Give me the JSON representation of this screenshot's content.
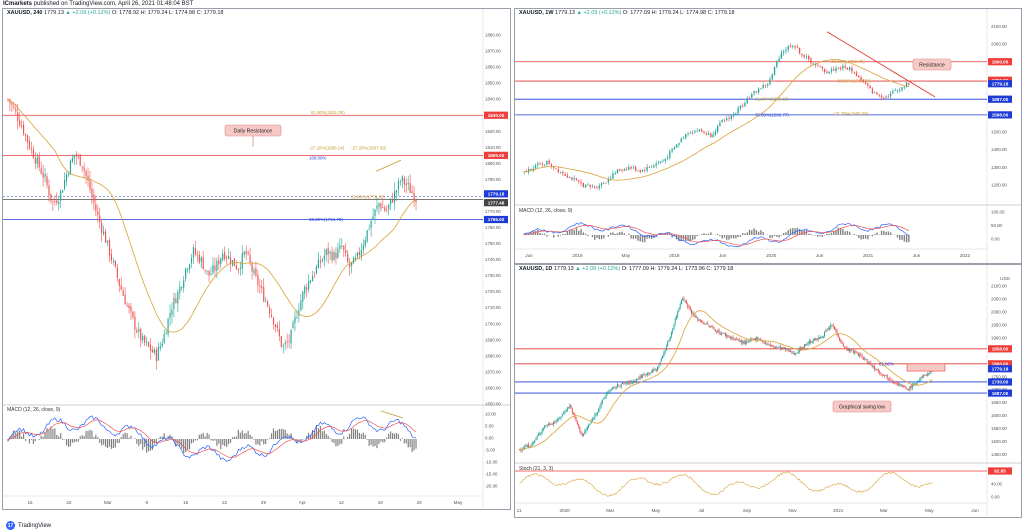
{
  "header": {
    "publisher": "ICmarkets",
    "meta": "published on TradingView.com, April 26, 2021 01:48:04 BST"
  },
  "footer": {
    "brand": "TradingView",
    "logo_text": "17"
  },
  "colors": {
    "up": "#26a69a",
    "down": "#ef5350",
    "red_line": "#e53935",
    "blue_line": "#1e3bd6",
    "ma": "#d8a336",
    "macd": "#2962ff",
    "signal": "#ef5350",
    "hist": "#555555",
    "stoch": "#d8a336",
    "tag_red": "#ef3d3a",
    "tag_blue": "#1e3bd6",
    "tag_dark": "#444444",
    "note_bg": "#f7c9c6",
    "note_border": "#d98c88",
    "fib": "#c89a2a",
    "tl": "#e53935"
  },
  "left": {
    "title": {
      "sym": "XAUUSD, 240",
      "price": "1779.13",
      "chg": "▲ +2.09 (+0.12%)",
      "o": "O: 1778.92",
      "h": "H: 1779.24",
      "l": "L: 1774.98",
      "c": "C: 1779.18"
    },
    "axis_ticks": [
      "1880.00",
      "1870.00",
      "1860.00",
      "1850.00",
      "1840.00",
      "1830.00",
      "1820.00",
      "1810.00",
      "1800.00",
      "1790.00",
      "1780.00",
      "1770.00",
      "1760.00",
      "1750.00",
      "1740.00",
      "1730.00",
      "1720.00",
      "1710.00",
      "1700.00",
      "1690.00",
      "1680.00",
      "1670.00",
      "1660.00",
      "1650.00"
    ],
    "tags": [
      {
        "label": "1830.00",
        "color": "red"
      },
      {
        "label": "1805.00",
        "color": "red"
      },
      {
        "label": "1779.18",
        "color": "blue"
      },
      {
        "label": "1777.48",
        "color": "dark"
      },
      {
        "label": "1765.00",
        "color": "blue"
      }
    ],
    "fibs": [
      "61.80%(1831.09)",
      "-27.20%(1808.14)",
      "100.00%",
      "-27.20%(1807.39)",
      "61.80%(1779.26)",
      "38.20%(1764.78)"
    ],
    "note": "Daily Resistance",
    "x_labels": [
      "15",
      "22",
      "Mar",
      "8",
      "15",
      "22",
      "29",
      "Apr",
      "12",
      "19",
      "26",
      "May"
    ],
    "macd": {
      "label": "MACD (12, 26, close, 9)",
      "ticks": [
        "10.00",
        "5.00",
        "0.00",
        "-5.00",
        "-10.00",
        "-15.00",
        "-20.00"
      ]
    }
  },
  "top_right": {
    "title": {
      "sym": "XAUUSD, 1W",
      "price": "1779.13",
      "chg": "▲ +2.09 (+0.12%)",
      "o": "O: 1777.09",
      "h": "H: 1779.24",
      "l": "L: 1774.98",
      "c": "C: 1779.18"
    },
    "axis_ticks": [
      "2100.00",
      "2000.00",
      "1900.00",
      "1800.00",
      "1700.00",
      "1600.00",
      "1500.00",
      "1400.00",
      "1300.00",
      "1200.00"
    ],
    "tags": [
      {
        "label": "1900.00",
        "color": "red"
      },
      {
        "label": "1790.00",
        "color": "red"
      },
      {
        "label": "1779.18",
        "color": "blue"
      },
      {
        "label": "1687.00",
        "color": "blue"
      },
      {
        "label": "1598.00",
        "color": "blue"
      }
    ],
    "fibs": [
      "61.80%(1689.15)",
      "78.60%(1596.77)",
      "-27.20%(1600.08)",
      "38.20%(1760.79)"
    ],
    "note": "Resistance",
    "x_labels": [
      "Jun",
      "2018",
      "May",
      "2019",
      "Jun",
      "2020",
      "Jun",
      "2021",
      "Jun",
      "2022"
    ],
    "macd": {
      "label": "MACD (12, 26, close, 9)",
      "ticks": [
        "100.00",
        "50.00",
        "0.00"
      ]
    }
  },
  "bottom_right": {
    "title": {
      "sym": "XAUUSD, 1D",
      "price": "1779.13",
      "chg": "▲ +2.09 (+0.12%)",
      "o": "O: 1777.09",
      "h": "H: 1779.24",
      "l": "L: 1773.96",
      "c": "C: 1779.18"
    },
    "axis_label": "USD",
    "axis_ticks": [
      "2100.00",
      "2050.00",
      "2000.00",
      "1950.00",
      "1900.00",
      "1850.00",
      "1800.00",
      "1750.00",
      "1700.00",
      "1650.00",
      "1600.00",
      "1550.00",
      "1500.00",
      "1450.00"
    ],
    "tags": [
      {
        "label": "1858.00",
        "color": "red"
      },
      {
        "label": "1800.00",
        "color": "red"
      },
      {
        "label": "1779.18",
        "color": "blue"
      },
      {
        "label": "1730.00",
        "color": "blue"
      },
      {
        "label": "1687.00",
        "color": "blue"
      }
    ],
    "fibs": [
      "61.80%"
    ],
    "note": "Graphical swing low",
    "x_labels": [
      "11",
      "2020",
      "Mar",
      "May",
      "Jul",
      "Sep",
      "Nov",
      "2021",
      "Mar",
      "May",
      "Jun"
    ],
    "stoch": {
      "label": "Stoch (21, 3, 3)",
      "ticks": [
        "80.00",
        "40.00",
        "0.00"
      ],
      "tag": "92.85"
    }
  },
  "chart_data": [
    {
      "type": "candlestick",
      "symbol": "XAUUSD",
      "timeframe": "240",
      "ylim": [
        1650,
        1885
      ],
      "levels": [
        1830,
        1805,
        1779.18,
        1765
      ],
      "approx_close_path": [
        1840,
        1832,
        1822,
        1810,
        1800,
        1790,
        1775,
        1780,
        1795,
        1806,
        1800,
        1785,
        1768,
        1755,
        1740,
        1725,
        1712,
        1700,
        1690,
        1685,
        1680,
        1692,
        1710,
        1720,
        1735,
        1745,
        1740,
        1730,
        1735,
        1745,
        1740,
        1735,
        1745,
        1732,
        1722,
        1712,
        1700,
        1685,
        1690,
        1708,
        1722,
        1730,
        1738,
        1745,
        1742,
        1748,
        1735,
        1740,
        1752,
        1765,
        1775,
        1770,
        1780,
        1790,
        1785,
        1778
      ]
    },
    {
      "type": "candlestick",
      "symbol": "XAUUSD",
      "timeframe": "1W",
      "ylim": [
        1120,
        2120
      ],
      "levels": [
        1900,
        1790,
        1687,
        1598
      ]
    },
    {
      "type": "candlestick",
      "symbol": "XAUUSD",
      "timeframe": "1D",
      "ylim": [
        1440,
        2120
      ],
      "levels": [
        1858,
        1800,
        1730,
        1687
      ],
      "indicator": "Stoch (21, 3, 3)",
      "stoch_tag": 92.85
    }
  ]
}
